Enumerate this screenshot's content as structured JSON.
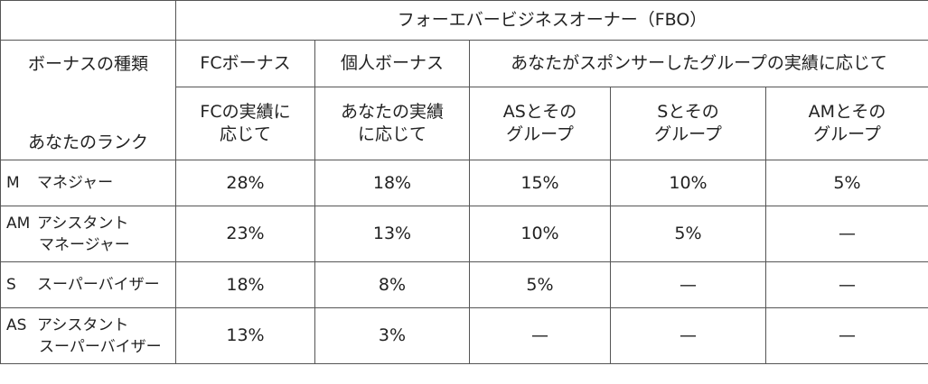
{
  "header": {
    "group": "フォーエバービジネスオーナー（FBO）",
    "bonus_type_label": "ボーナスの種類",
    "rank_label": "あなたのランク",
    "fc_bonus": "FCボーナス",
    "personal_bonus": "個人ボーナス",
    "group_bonus": "あなたがスポンサーしたグループの実績に応じて",
    "sub": {
      "fc": [
        "FCの実績に",
        "応じて"
      ],
      "personal": [
        "あなたの実績",
        "に応じて"
      ],
      "as_group": [
        "ASとその",
        "グループ"
      ],
      "s_group": [
        "Sとその",
        "グループ"
      ],
      "am_group": [
        "AMとその",
        "グループ"
      ]
    }
  },
  "rows": [
    {
      "code": "M",
      "name_lines": [
        "マネジャー"
      ],
      "values": [
        "28%",
        "18%",
        "15%",
        "10%",
        "5%"
      ]
    },
    {
      "code": "AM",
      "name_lines": [
        "アシスタント",
        "マネージャー"
      ],
      "values": [
        "23%",
        "13%",
        "10%",
        "5%",
        "—"
      ]
    },
    {
      "code": "S",
      "name_lines": [
        "スーパーバイザー"
      ],
      "values": [
        "18%",
        "8%",
        "5%",
        "—",
        "—"
      ]
    },
    {
      "code": "AS",
      "name_lines": [
        "アシスタント",
        "スーパーバイザー"
      ],
      "values": [
        "13%",
        "3%",
        "—",
        "—",
        "—"
      ]
    }
  ]
}
